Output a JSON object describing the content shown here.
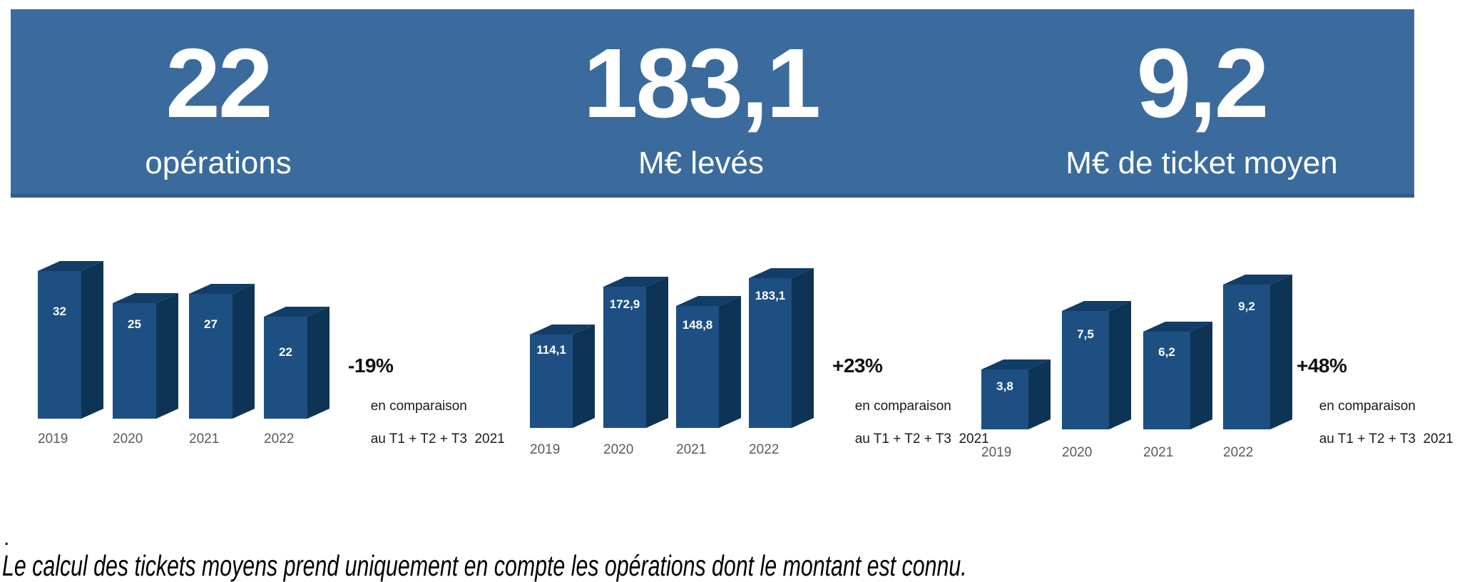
{
  "chart_data": [
    {
      "type": "bar",
      "headline_value": "22",
      "headline_label": "opérations",
      "categories": [
        "2019",
        "2020",
        "2021",
        "2022"
      ],
      "values": [
        32,
        25,
        27,
        22
      ],
      "value_labels": [
        "32",
        "25",
        "27",
        "22"
      ],
      "change_pct": "-19%",
      "change_note": [
        "en comparaison",
        "au T1 + T2 + T3  2021"
      ],
      "ylim": [
        0,
        32
      ],
      "legend": "none",
      "grid": false
    },
    {
      "type": "bar",
      "headline_value": "183,1",
      "headline_label": "M€ levés",
      "categories": [
        "2019",
        "2020",
        "2021",
        "2022"
      ],
      "values": [
        114.1,
        172.9,
        148.8,
        183.1
      ],
      "value_labels": [
        "114,1",
        "172,9",
        "148,8",
        "183,1"
      ],
      "change_pct": "+23%",
      "change_note": [
        "en comparaison",
        "au T1 + T2 + T3  2021"
      ],
      "ylim": [
        0,
        183.1
      ],
      "legend": "none",
      "grid": false
    },
    {
      "type": "bar",
      "headline_value": "9,2",
      "headline_label": "M€ de ticket moyen",
      "categories": [
        "2019",
        "2020",
        "2021",
        "2022"
      ],
      "values": [
        3.8,
        7.5,
        6.2,
        9.2
      ],
      "value_labels": [
        "3,8",
        "7,5",
        "6,2",
        "9,2"
      ],
      "change_pct": "+48%",
      "change_note": [
        "en comparaison",
        "au T1 + T2 + T3  2021"
      ],
      "ylim": [
        0,
        9.2
      ],
      "legend": "none",
      "grid": false
    }
  ],
  "footnote": {
    "dot": ".",
    "text": "Le calcul des tickets moyens prend uniquement en compte les opérations dont le montant est connu."
  },
  "colors": {
    "band": "#3a6b9c",
    "bar_front": "#1d4f82",
    "bar_top": "#123d67",
    "bar_side": "#0d3355",
    "header_text": "#ffffff",
    "year_label": "#5a5a5a",
    "annotation_text": "#111111"
  }
}
